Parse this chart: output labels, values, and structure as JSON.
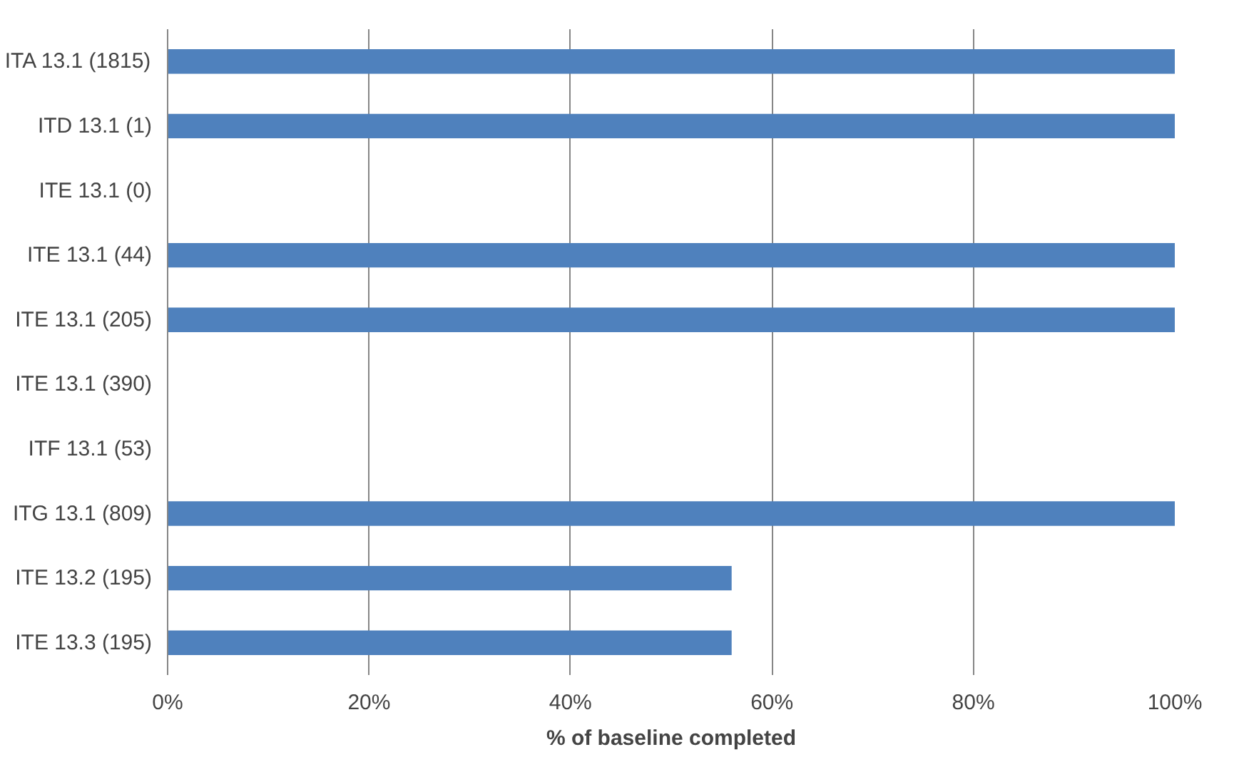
{
  "chart_data": {
    "type": "bar",
    "orientation": "horizontal",
    "xlabel": "% of baseline completed",
    "categories": [
      "ITA 13.1 (1815)",
      "ITD 13.1 (1)",
      "ITE 13.1 (0)",
      "ITE 13.1 (44)",
      "ITE 13.1 (205)",
      "ITE 13.1 (390)",
      "ITF 13.1 (53)",
      "ITG 13.1 (809)",
      "ITE 13.2 (195)",
      "ITE 13.3 (195)"
    ],
    "values": [
      100,
      100,
      0,
      100,
      100,
      0,
      0,
      100,
      56,
      56
    ],
    "color": "#4f81bd",
    "xlim": [
      0,
      100
    ],
    "xticks": [
      {
        "value": 0,
        "label": "0%"
      },
      {
        "value": 20,
        "label": "20%"
      },
      {
        "value": 40,
        "label": "40%"
      },
      {
        "value": 60,
        "label": "60%"
      },
      {
        "value": 80,
        "label": "80%"
      },
      {
        "value": 100,
        "label": "100%"
      }
    ],
    "grid": "x"
  }
}
